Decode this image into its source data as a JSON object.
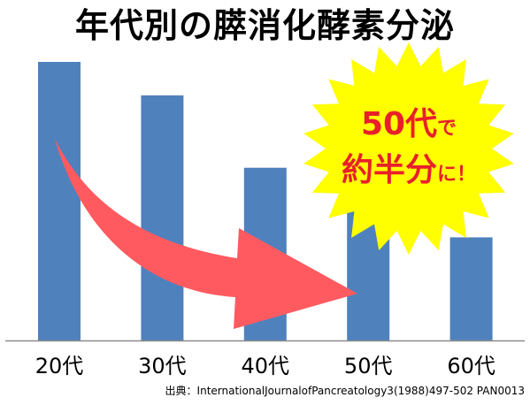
{
  "title": "年代別の膵消化酵素分泌",
  "source": "出典：InternationalJournalofPancreatology3(1988)497-502 PAN0013",
  "colors": {
    "bar": "#4F81BD",
    "arrow": "#FF5A5F",
    "burst_fill": "#FFFF00",
    "burst_text": "#E8202A",
    "axis": "#8C8C8C",
    "title": "#000000"
  },
  "callout": {
    "line1_main": "50代",
    "line1_small": "で",
    "line2_main": "約半分",
    "line2_small": "に！"
  },
  "chart_data": {
    "type": "bar",
    "categories": [
      "20代",
      "30代",
      "40代",
      "50代",
      "60代"
    ],
    "values": [
      100,
      88,
      62,
      50,
      37
    ],
    "ylim": [
      0,
      100
    ],
    "title": "年代別の膵消化酵素分泌",
    "xlabel": "",
    "ylabel": "",
    "grid": false,
    "legend": "none"
  }
}
